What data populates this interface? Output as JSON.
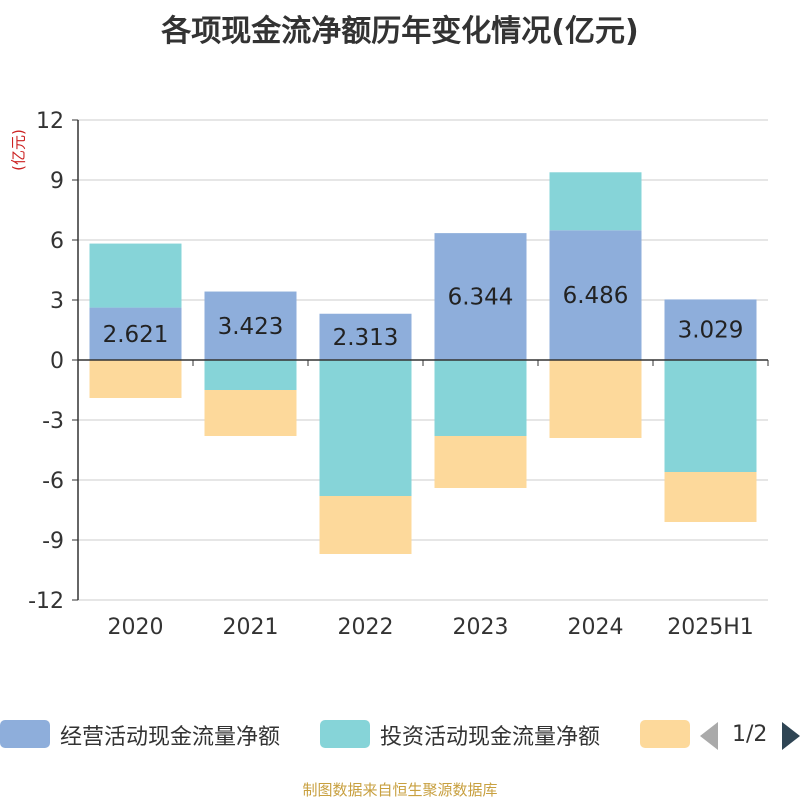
{
  "title": "各项现金流净额历年变化情况(亿元)",
  "unit_label": "(亿元)",
  "source": "制图数据来自恒生聚源数据库",
  "legend": {
    "items": [
      {
        "label": "经营活动现金流量净额",
        "color": "#8eaedb"
      },
      {
        "label": "投资活动现金流量净额",
        "color": "#86d4d8"
      },
      {
        "label": "",
        "color": "#fdd99b"
      }
    ],
    "page": "1/2"
  },
  "chart_data": {
    "type": "bar",
    "stacked": true,
    "categories": [
      "2020",
      "2021",
      "2022",
      "2023",
      "2024",
      "2025H1"
    ],
    "ylim": [
      -12,
      12
    ],
    "yticks": [
      12,
      9,
      6,
      3,
      0,
      -3,
      -6,
      -9,
      -12
    ],
    "grid": true,
    "legend_position": "bottom",
    "series": [
      {
        "name": "经营活动现金流量净额",
        "color": "#8eaedb",
        "values": [
          2.621,
          3.423,
          2.313,
          6.344,
          6.486,
          3.029
        ],
        "labels": [
          "2.621",
          "3.423",
          "2.313",
          "6.344",
          "6.486",
          "3.029"
        ]
      },
      {
        "name": "投资活动现金流量净额",
        "color": "#86d4d8",
        "values": [
          3.2,
          -1.5,
          -6.8,
          -3.8,
          2.9,
          -5.6
        ]
      },
      {
        "color": "#fdd99b",
        "values": [
          -1.9,
          -2.3,
          -2.9,
          -2.6,
          -3.9,
          -2.5
        ]
      }
    ]
  }
}
